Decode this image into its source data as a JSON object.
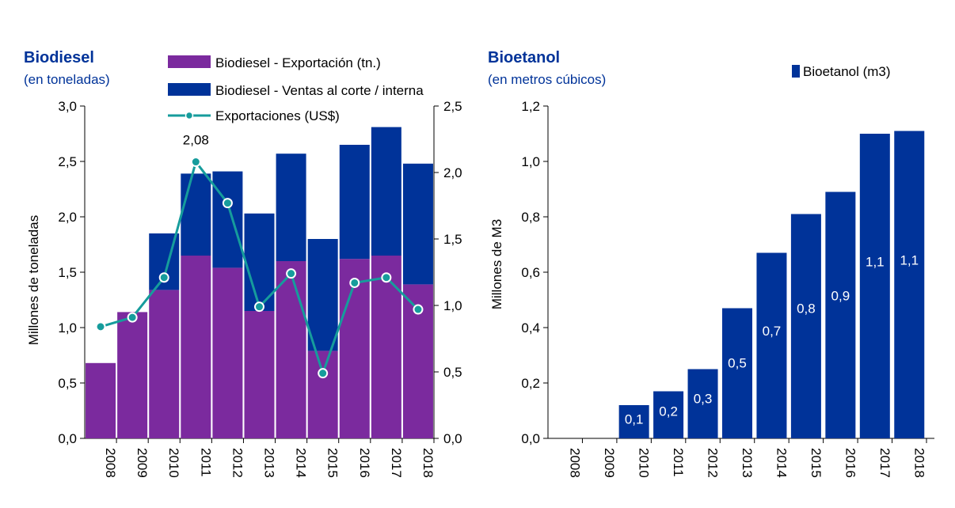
{
  "chart_data": [
    {
      "type": "bar",
      "title": "Biodiesel",
      "subtitle": "(en toneladas)",
      "stacked": true,
      "categories": [
        "2008",
        "2009",
        "2010",
        "2011",
        "2012",
        "2013",
        "2014",
        "2015",
        "2016",
        "2017",
        "2018"
      ],
      "series": [
        {
          "name": "Biodiesel - Exportación (tn.)",
          "color": "#7B2A9E",
          "values": [
            0.68,
            1.14,
            1.34,
            1.65,
            1.54,
            1.15,
            1.6,
            0.79,
            1.62,
            1.65,
            1.39
          ]
        },
        {
          "name": "Biodiesel - Ventas al corte / interna",
          "color": "#003399",
          "values": [
            0.0,
            0.0,
            0.51,
            0.74,
            0.87,
            0.88,
            0.97,
            1.01,
            1.03,
            1.16,
            1.09
          ]
        }
      ],
      "line_series": {
        "name": "Exportaciones (US$)",
        "color": "#169C9C",
        "axis": "right",
        "values": [
          0.84,
          0.91,
          1.21,
          2.08,
          1.77,
          0.99,
          1.24,
          0.49,
          1.17,
          1.21,
          0.97
        ]
      },
      "peak_label": "2,08",
      "ylabel": "Millones de toneladas",
      "ylim": [
        0,
        3.0
      ],
      "yticks": [
        "0,0",
        "0,5",
        "1,0",
        "1,5",
        "2,0",
        "2,5",
        "3,0"
      ],
      "y2lim": [
        0,
        2.5
      ],
      "y2ticks": [
        "0,0",
        "0,5",
        "1,0",
        "1,5",
        "2,0",
        "2,5"
      ],
      "legend": "top"
    },
    {
      "type": "bar",
      "title": "Bioetanol",
      "subtitle": "(en metros cúbicos)",
      "categories": [
        "2008",
        "2009",
        "2010",
        "2011",
        "2012",
        "2013",
        "2014",
        "2015",
        "2016",
        "2017",
        "2018"
      ],
      "series": [
        {
          "name": "Bioetanol (m3)",
          "color": "#003399",
          "values": [
            0.0,
            0.0,
            0.12,
            0.17,
            0.25,
            0.47,
            0.67,
            0.81,
            0.89,
            1.1,
            1.11
          ]
        }
      ],
      "data_labels": [
        "",
        "",
        "0,1",
        "0,2",
        "0,3",
        "0,5",
        "0,7",
        "0,8",
        "0,9",
        "1,1",
        "1,1"
      ],
      "ylabel": "Millones de M3",
      "ylim": [
        0,
        1.2
      ],
      "yticks": [
        "0,0",
        "0,2",
        "0,4",
        "0,6",
        "0,8",
        "1,0",
        "1,2"
      ],
      "legend": "top-right"
    }
  ]
}
